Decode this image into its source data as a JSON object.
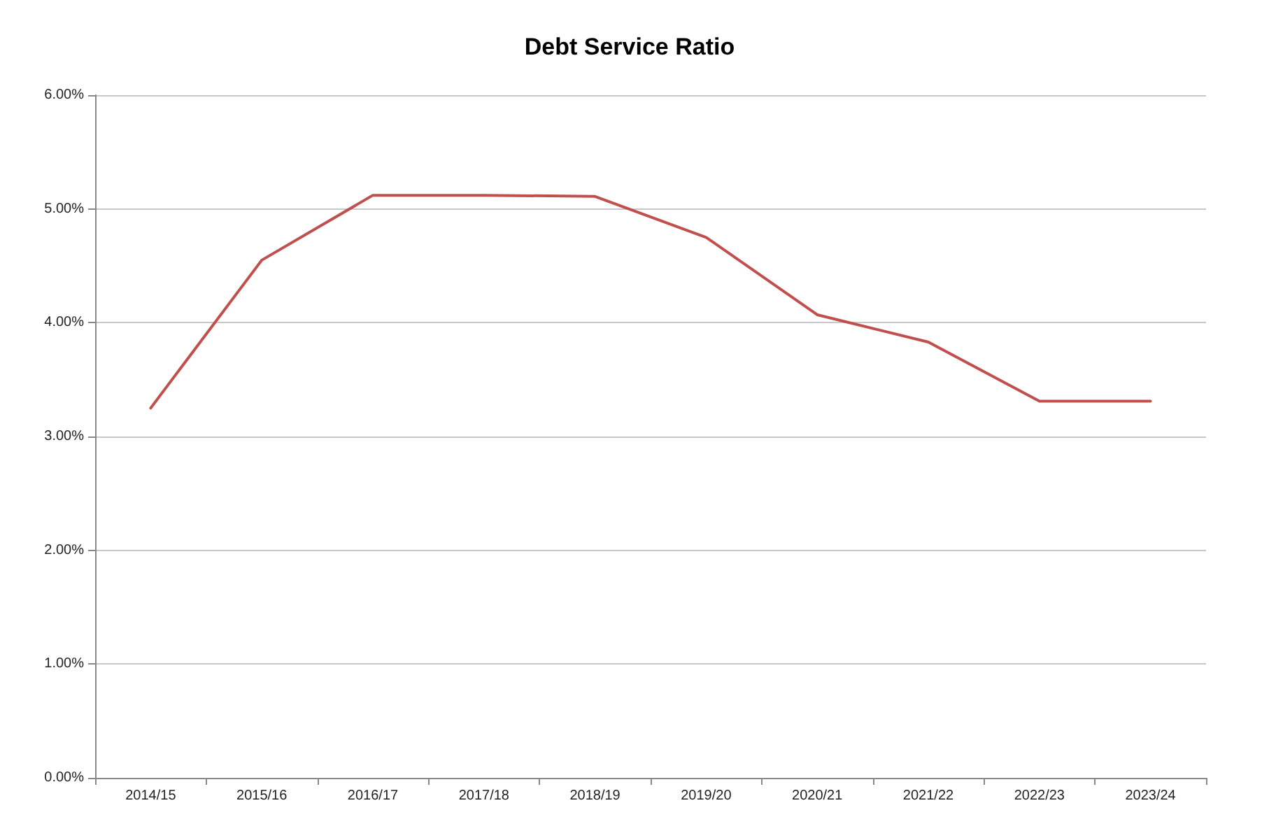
{
  "chart_data": {
    "type": "line",
    "title": "Debt Service Ratio",
    "categories": [
      "2014/15",
      "2015/16",
      "2016/17",
      "2017/18",
      "2018/19",
      "2019/20",
      "2020/21",
      "2021/22",
      "2022/23",
      "2023/24"
    ],
    "series": [
      {
        "color": "#c0504d",
        "values": [
          3.25,
          4.55,
          5.12,
          5.12,
          5.11,
          4.75,
          4.07,
          3.83,
          3.31,
          3.31
        ]
      }
    ],
    "ylim": [
      0,
      6
    ],
    "yticks": [
      {
        "value": 0,
        "label": "0.00%"
      },
      {
        "value": 1,
        "label": "1.00%"
      },
      {
        "value": 2,
        "label": "2.00%"
      },
      {
        "value": 3,
        "label": "3.00%"
      },
      {
        "value": 4,
        "label": "4.00%"
      },
      {
        "value": 5,
        "label": "5.00%"
      },
      {
        "value": 6,
        "label": "6.00%"
      }
    ],
    "grid": "y",
    "marker": "none",
    "line_style": "solid"
  }
}
